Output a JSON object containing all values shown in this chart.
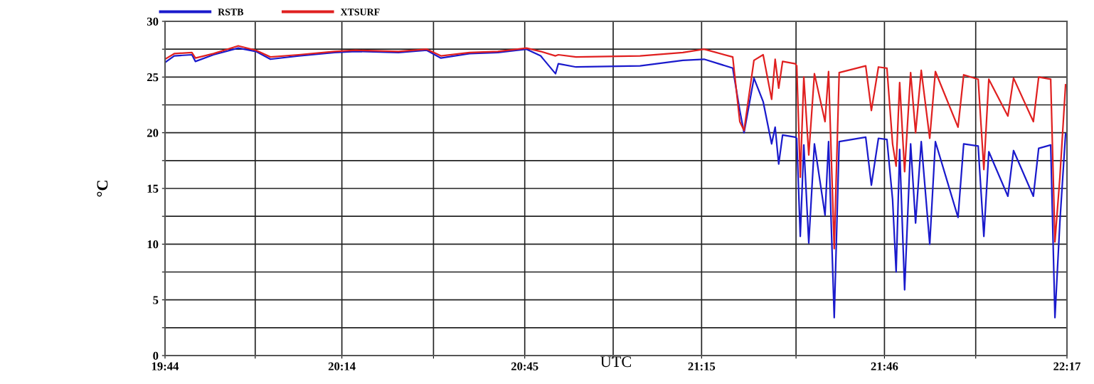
{
  "chart_data": {
    "type": "line",
    "xlabel": "UTC",
    "ylabel": "°C",
    "x": [
      19.733,
      19.759,
      19.809,
      19.819,
      19.87,
      19.94,
      19.99,
      20.031,
      20.111,
      20.212,
      20.272,
      20.393,
      20.473,
      20.513,
      20.594,
      20.674,
      20.755,
      20.795,
      20.837,
      20.845,
      20.895,
      21.076,
      21.197,
      21.257,
      21.338,
      21.358,
      21.37,
      21.398,
      21.424,
      21.448,
      21.458,
      21.468,
      21.479,
      21.515,
      21.519,
      21.529,
      21.539,
      21.553,
      21.569,
      21.599,
      21.609,
      21.625,
      21.639,
      21.714,
      21.73,
      21.75,
      21.774,
      21.79,
      21.8,
      21.81,
      21.824,
      21.841,
      21.855,
      21.871,
      21.895,
      21.911,
      21.975,
      21.991,
      22.032,
      22.048,
      22.062,
      22.116,
      22.132,
      22.188,
      22.203,
      22.237,
      22.249,
      22.263,
      22.279
    ],
    "series": [
      {
        "name": "RSTB",
        "color": "#1a1acc",
        "values": [
          26.3,
          26.9,
          27.0,
          26.4,
          27.0,
          27.6,
          27.3,
          26.6,
          26.9,
          27.2,
          27.3,
          27.2,
          27.4,
          26.7,
          27.1,
          27.2,
          27.5,
          26.9,
          25.3,
          26.2,
          25.9,
          26.0,
          26.5,
          26.6,
          25.8,
          22.0,
          20.0,
          24.9,
          22.8,
          19.0,
          20.5,
          17.2,
          19.8,
          19.6,
          19.5,
          10.7,
          18.9,
          10.1,
          19.0,
          12.6,
          19.2,
          3.4,
          19.2,
          19.6,
          15.3,
          19.5,
          19.4,
          14.0,
          7.5,
          18.5,
          5.9,
          19.0,
          11.9,
          19.2,
          10.0,
          19.2,
          12.4,
          19.0,
          18.8,
          10.7,
          18.3,
          14.3,
          18.4,
          14.3,
          18.6,
          18.9,
          3.4,
          12.0,
          19.9
        ]
      },
      {
        "name": "XTSURF",
        "color": "#e02020",
        "values": [
          26.6,
          27.1,
          27.2,
          26.7,
          27.1,
          27.8,
          27.4,
          26.8,
          27.0,
          27.3,
          27.4,
          27.3,
          27.5,
          26.9,
          27.2,
          27.3,
          27.6,
          27.3,
          26.9,
          27.0,
          26.8,
          26.9,
          27.2,
          27.5,
          26.8,
          21.0,
          20.2,
          26.5,
          27.0,
          23.0,
          26.6,
          24.0,
          26.4,
          26.2,
          26.0,
          16.0,
          25.0,
          18.0,
          25.3,
          21.0,
          25.5,
          9.6,
          25.4,
          26.0,
          22.0,
          25.9,
          25.8,
          19.0,
          17.0,
          24.5,
          16.5,
          25.4,
          20.0,
          25.6,
          19.5,
          25.5,
          20.5,
          25.2,
          24.8,
          16.7,
          24.8,
          21.5,
          24.9,
          21.0,
          25.0,
          24.8,
          10.2,
          16.0,
          24.3
        ]
      }
    ],
    "xlim": [
      19.733,
      22.283
    ],
    "xticks": [
      {
        "value": 19.733,
        "label": "19:44"
      },
      {
        "value": 19.988,
        "label": null
      },
      {
        "value": 20.233,
        "label": "20:14"
      },
      {
        "value": 20.492,
        "label": null
      },
      {
        "value": 20.75,
        "label": "20:45"
      },
      {
        "value": 21.0,
        "label": null
      },
      {
        "value": 21.25,
        "label": "21:15"
      },
      {
        "value": 21.517,
        "label": null
      },
      {
        "value": 21.767,
        "label": "21:46"
      },
      {
        "value": 22.025,
        "label": null
      },
      {
        "value": 22.283,
        "label": "22:17"
      }
    ],
    "ylim": [
      0,
      30
    ],
    "yticks": [
      0,
      {
        "value": 2.5,
        "label": null
      },
      5,
      {
        "value": 7.5,
        "label": null
      },
      10,
      {
        "value": 12.5,
        "label": null
      },
      15,
      {
        "value": 17.5,
        "label": null
      },
      20,
      {
        "value": 22.5,
        "label": null
      },
      25,
      {
        "value": 27.5,
        "label": null
      },
      30
    ],
    "grid": true,
    "legend": "top left",
    "marker": "none",
    "line_style": "solid"
  }
}
